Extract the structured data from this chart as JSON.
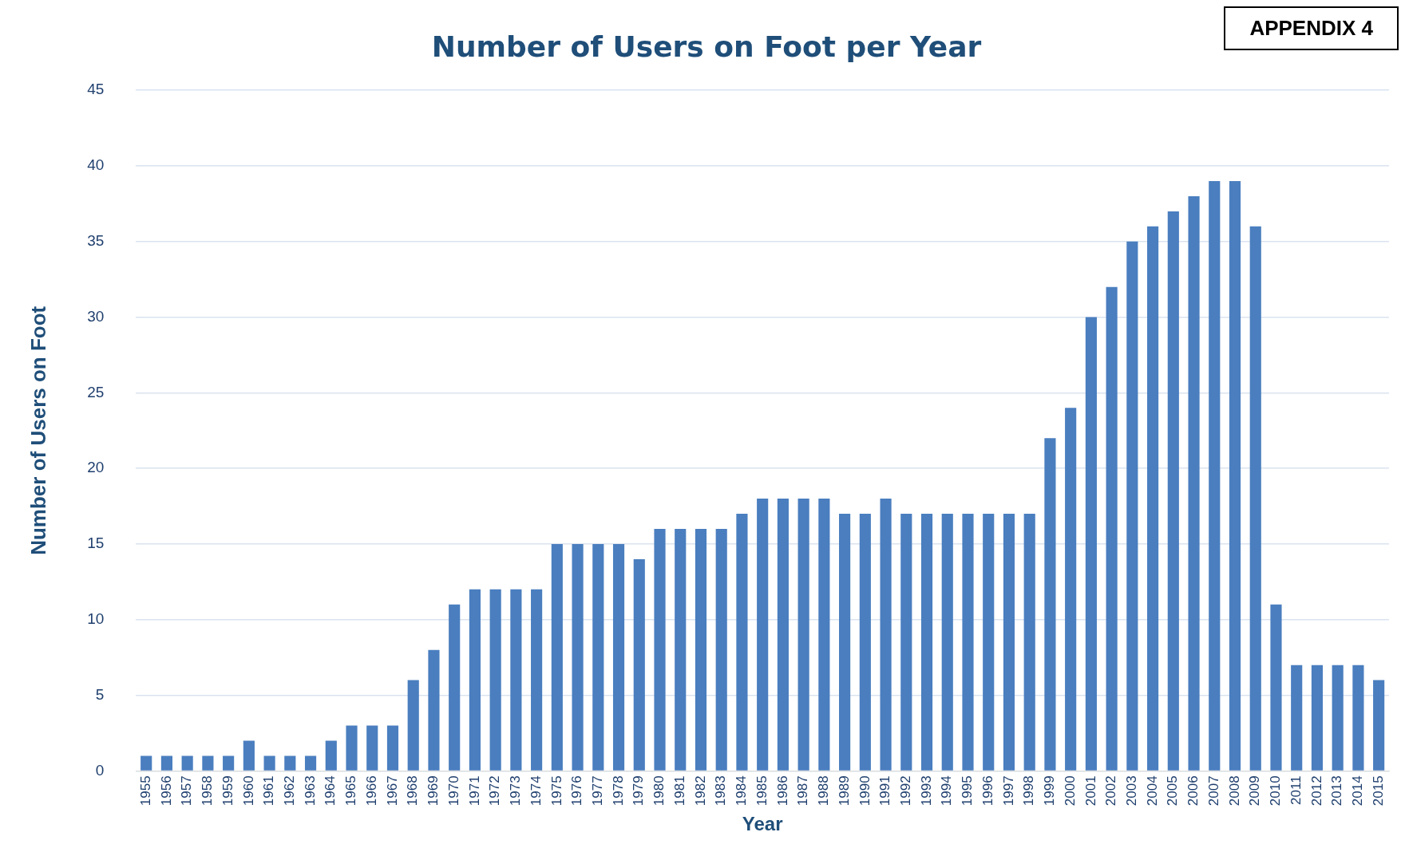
{
  "chart_data": {
    "type": "bar",
    "title": "Number of Users on Foot per Year",
    "xlabel": "Year",
    "ylabel": "Number of Users on Foot",
    "annotations": [
      "APPENDIX 4"
    ],
    "categories": [
      "1955",
      "1956",
      "1957",
      "1958",
      "1959",
      "1960",
      "1961",
      "1962",
      "1963",
      "1964",
      "1965",
      "1966",
      "1967",
      "1968",
      "1969",
      "1970",
      "1971",
      "1972",
      "1973",
      "1974",
      "1975",
      "1976",
      "1977",
      "1978",
      "1979",
      "1980",
      "1981",
      "1982",
      "1983",
      "1984",
      "1985",
      "1986",
      "1987",
      "1988",
      "1989",
      "1990",
      "1991",
      "1992",
      "1993",
      "1994",
      "1995",
      "1996",
      "1997",
      "1998",
      "1999",
      "2000",
      "2001",
      "2002",
      "2003",
      "2004",
      "2005",
      "2006",
      "2007",
      "2008",
      "2009",
      "2010",
      "2011",
      "2012",
      "2013",
      "2014",
      "2015"
    ],
    "values": [
      1,
      1,
      1,
      1,
      1,
      2,
      1,
      1,
      1,
      2,
      3,
      3,
      3,
      6,
      8,
      11,
      12,
      12,
      12,
      12,
      15,
      15,
      15,
      15,
      14,
      16,
      16,
      16,
      16,
      17,
      18,
      18,
      18,
      18,
      17,
      17,
      18,
      17,
      17,
      17,
      17,
      17,
      17,
      17,
      22,
      24,
      30,
      32,
      35,
      36,
      37,
      38,
      39,
      39,
      36,
      11,
      7,
      7,
      7,
      7,
      6
    ],
    "color": "#4a7ebf",
    "ylim": [
      0,
      45
    ],
    "yticks": [
      0,
      5,
      10,
      15,
      20,
      25,
      30,
      35,
      40,
      45
    ],
    "grid": "y",
    "legend": false
  }
}
